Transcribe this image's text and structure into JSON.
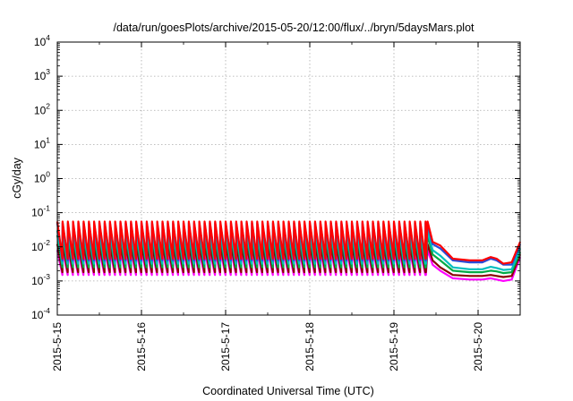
{
  "chart_data": {
    "type": "line",
    "title": "/data/run/goesPlots/archive/2015-05-20/12:00/flux/../bryn/5daysMars.plot",
    "xlabel": "Coordinated Universal Time (UTC)",
    "ylabel": "cGy/day",
    "yscale": "log",
    "ylim": [
      0.0001,
      10000
    ],
    "xlim": [
      "2015-05-15 00:00",
      "2015-05-20 12:00"
    ],
    "grid": true,
    "legend": "none",
    "x_ticks": [
      "2015-5-15",
      "2015-5-16",
      "2015-5-17",
      "2015-5-18",
      "2015-5-19",
      "2015-5-20"
    ],
    "y_ticks": [
      {
        "base": "10",
        "exp": "4"
      },
      {
        "base": "10",
        "exp": "3"
      },
      {
        "base": "10",
        "exp": "2"
      },
      {
        "base": "10",
        "exp": "1"
      },
      {
        "base": "10",
        "exp": "0"
      },
      {
        "base": "10",
        "exp": "-1"
      },
      {
        "base": "10",
        "exp": "-2"
      },
      {
        "base": "10",
        "exp": "-3"
      },
      {
        "base": "10",
        "exp": "-4"
      }
    ],
    "series": [
      {
        "color": "#ff0000",
        "values": [
          0.055,
          0.0045,
          0.055,
          0.014,
          0.011,
          0.0045,
          0.004,
          0.004,
          0.005,
          0.0045,
          0.0032,
          0.0035,
          0.014
        ]
      },
      {
        "color": "#2a4bd7",
        "values": [
          0.05,
          0.004,
          0.05,
          0.012,
          0.009,
          0.004,
          0.0035,
          0.0035,
          0.0045,
          0.004,
          0.003,
          0.003,
          0.012
        ]
      },
      {
        "color": "#00bfbf",
        "values": [
          0.03,
          0.0032,
          0.03,
          0.008,
          0.0055,
          0.0025,
          0.0022,
          0.0022,
          0.0026,
          0.0024,
          0.0021,
          0.0022,
          0.009
        ]
      },
      {
        "color": "#00aa44",
        "values": [
          0.022,
          0.0025,
          0.022,
          0.006,
          0.004,
          0.002,
          0.0018,
          0.0018,
          0.002,
          0.0019,
          0.0017,
          0.0018,
          0.007
        ]
      },
      {
        "color": "#8b0000",
        "values": [
          0.012,
          0.0018,
          0.012,
          0.004,
          0.0025,
          0.0015,
          0.0014,
          0.0014,
          0.0015,
          0.0014,
          0.0013,
          0.0014,
          0.006
        ]
      },
      {
        "color": "#ff00ff",
        "values": [
          0.008,
          0.0015,
          0.008,
          0.003,
          0.002,
          0.0012,
          0.0011,
          0.0011,
          0.0012,
          0.0011,
          0.001,
          0.0011,
          0.005
        ]
      }
    ]
  }
}
